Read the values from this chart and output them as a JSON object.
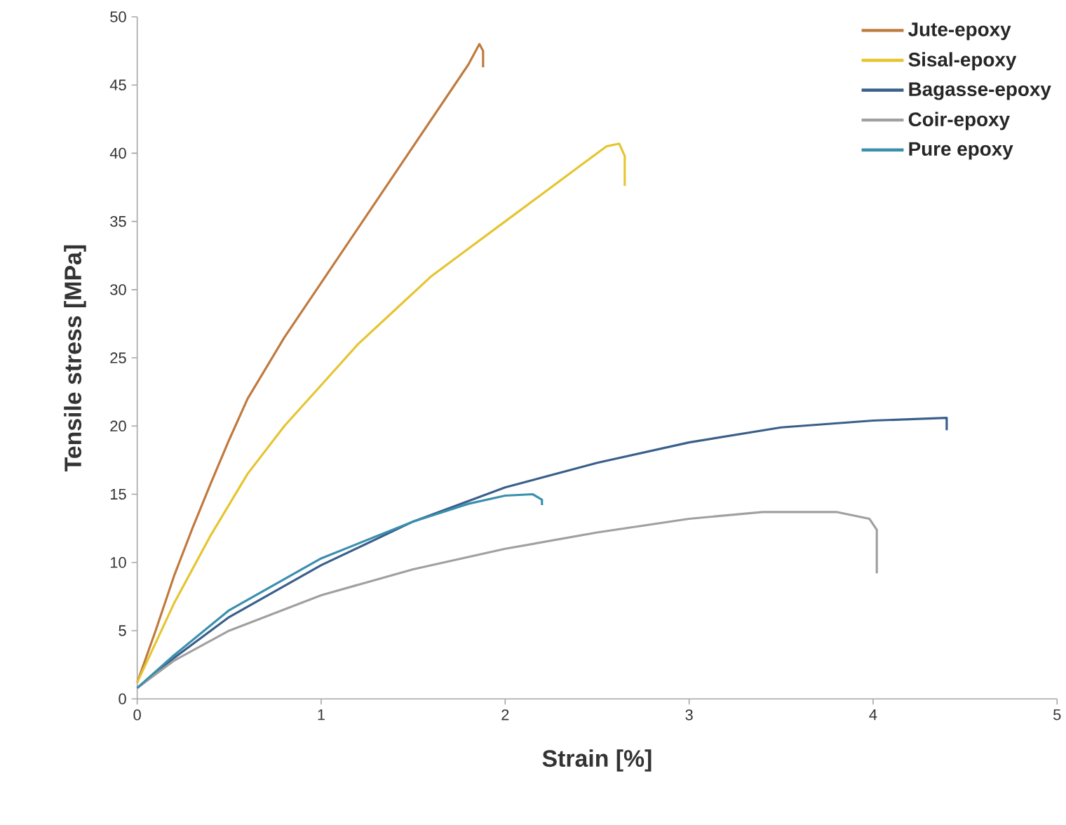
{
  "chart_data": {
    "type": "line",
    "xlabel": "Strain [%]",
    "ylabel": "Tensile stress [MPa]",
    "xlim": [
      0,
      5
    ],
    "ylim": [
      0,
      50
    ],
    "xticks": [
      0,
      1,
      2,
      3,
      4,
      5
    ],
    "yticks": [
      0,
      5,
      10,
      15,
      20,
      25,
      30,
      35,
      40,
      45,
      50
    ],
    "grid": false,
    "legend": "top right",
    "marker": "none",
    "line_style": "solid",
    "series": [
      {
        "name": "Jute-epoxy",
        "color": "#c07a3e",
        "x": [
          0,
          0.1,
          0.2,
          0.3,
          0.4,
          0.5,
          0.6,
          0.8,
          1.0,
          1.2,
          1.4,
          1.6,
          1.8,
          1.86,
          1.88,
          1.88
        ],
        "values": [
          1.2,
          5,
          9,
          12.5,
          15.8,
          19,
          22,
          26.5,
          30.5,
          34.5,
          38.5,
          42.5,
          46.5,
          48,
          47.5,
          46.3
        ]
      },
      {
        "name": "Sisal-epoxy",
        "color": "#e6c531",
        "x": [
          0,
          0.2,
          0.4,
          0.6,
          0.8,
          1,
          1.2,
          1.4,
          1.6,
          1.8,
          2,
          2.2,
          2.4,
          2.55,
          2.62,
          2.65,
          2.65
        ],
        "values": [
          1.2,
          7,
          12,
          16.5,
          20,
          23,
          26,
          28.5,
          31,
          33,
          35,
          37,
          39,
          40.5,
          40.7,
          39.8,
          37.6
        ]
      },
      {
        "name": "Bagasse-epoxy",
        "color": "#3a5f8a",
        "x": [
          0,
          0.2,
          0.5,
          1,
          1.5,
          2,
          2.5,
          3,
          3.5,
          4,
          4.4,
          4.4
        ],
        "values": [
          0.8,
          3,
          6,
          9.8,
          13,
          15.5,
          17.3,
          18.8,
          19.9,
          20.4,
          20.6,
          19.7
        ]
      },
      {
        "name": "Coir-epoxy",
        "color": "#a0a0a0",
        "x": [
          0,
          0.2,
          0.5,
          1,
          1.5,
          2,
          2.5,
          3,
          3.4,
          3.8,
          3.98,
          4.02,
          4.02
        ],
        "values": [
          0.8,
          2.8,
          5,
          7.6,
          9.5,
          11,
          12.2,
          13.2,
          13.7,
          13.7,
          13.2,
          12.4,
          9.2
        ]
      },
      {
        "name": "Pure epoxy",
        "color": "#3a8fae",
        "x": [
          0,
          0.2,
          0.5,
          1,
          1.5,
          1.8,
          2,
          2.15,
          2.2,
          2.2
        ],
        "values": [
          0.8,
          3.2,
          6.5,
          10.3,
          13,
          14.3,
          14.9,
          15,
          14.6,
          14.2
        ]
      }
    ]
  }
}
